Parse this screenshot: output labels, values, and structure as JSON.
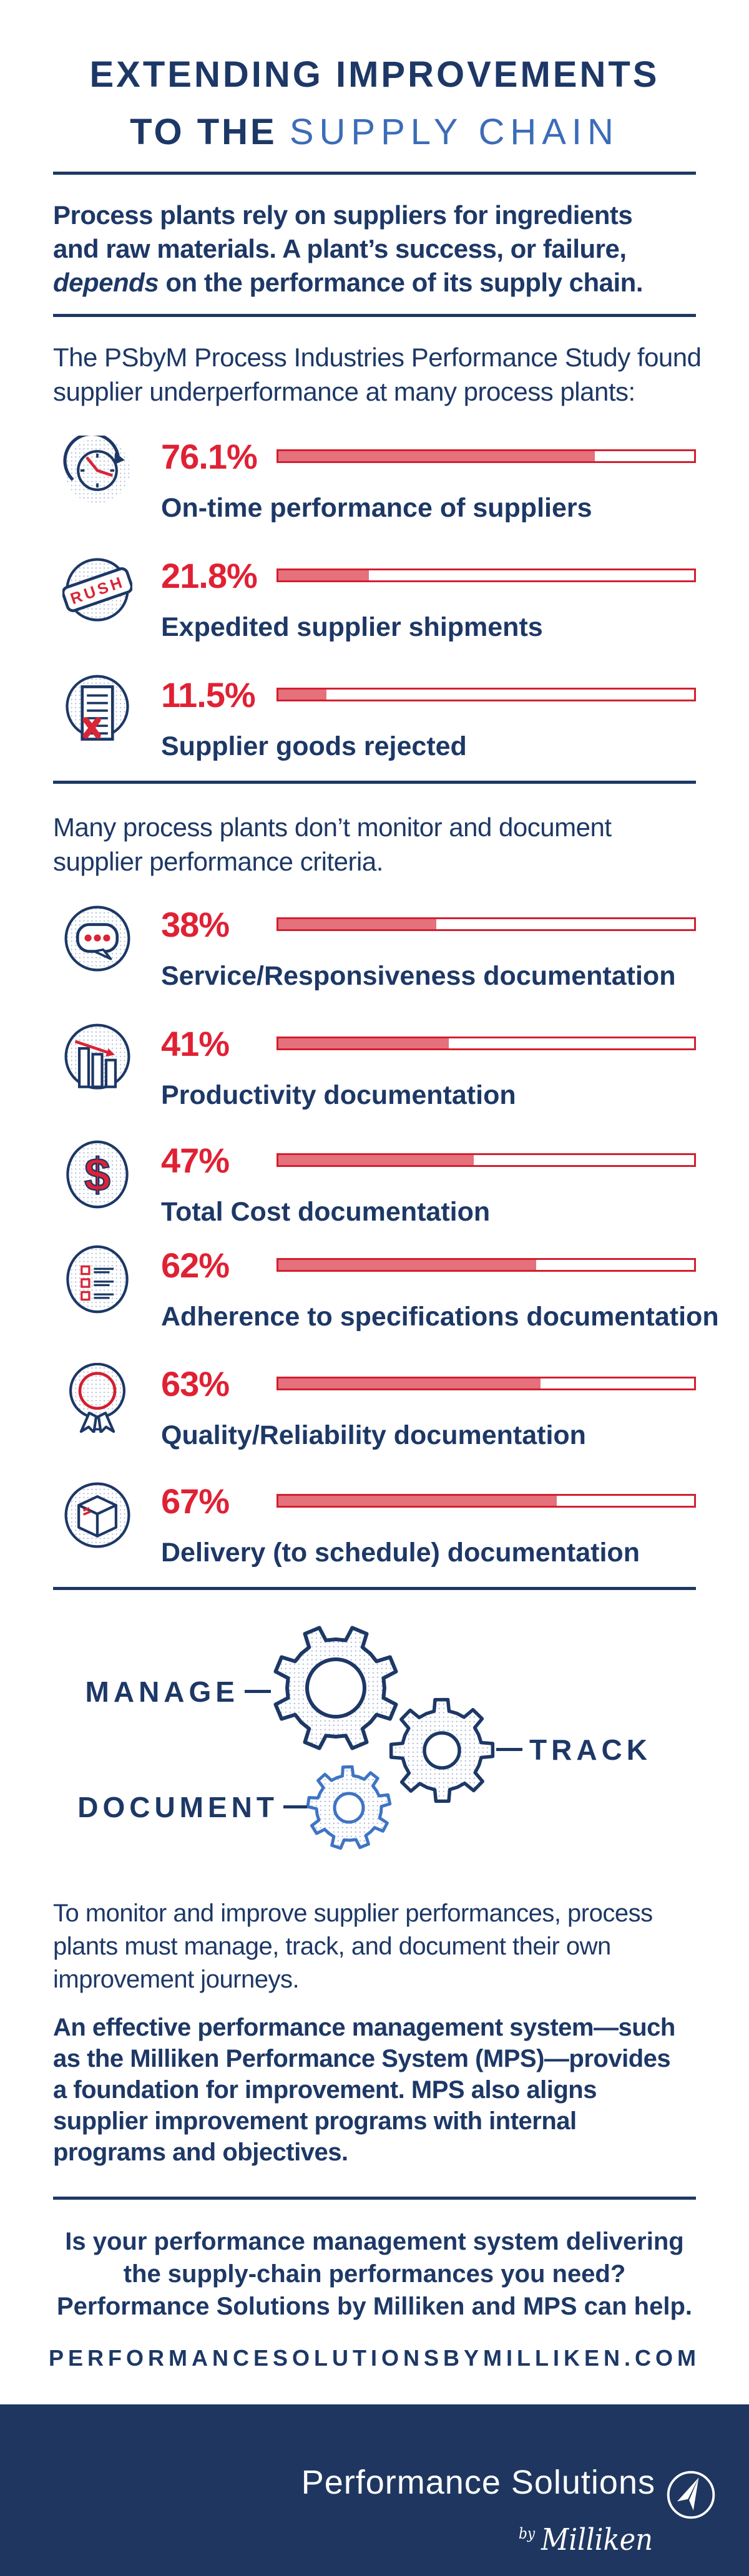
{
  "page_title": "Extending Improvements to the Supply Chain infographic",
  "colors": {
    "navy": "#1d3866",
    "light_blue": "#3c6cb8",
    "red": "#e02134",
    "bar_fill": "#e4717b",
    "bar_border": "#d31f2f",
    "footer_bg": "#1f3760",
    "dot_pattern": "#a9bad8"
  },
  "title": {
    "line1": "EXTENDING IMPROVEMENTS",
    "line2_dark": "TO THE ",
    "line2_light": "SUPPLY CHAIN"
  },
  "intro": {
    "line1": "Process plants rely on suppliers for ingredients",
    "line2": "and raw materials. A plant’s success, or failure,",
    "line3_italic": "depends",
    "line3_rest": " on the performance of its supply chain."
  },
  "study": {
    "line1": "The PSbyM Process Industries Performance Study found",
    "line2": "supplier underperformance at many process plants:"
  },
  "stats_supplier": [
    {
      "value": "76.1%",
      "percent": 76.1,
      "label": "On-time performance of suppliers",
      "icon": "clock-icon"
    },
    {
      "value": "21.8%",
      "percent": 21.8,
      "label": "Expedited supplier shipments",
      "icon": "rush-stamp-icon",
      "stamp_text": "RUSH"
    },
    {
      "value": "11.5%",
      "percent": 11.5,
      "label": "Supplier goods rejected",
      "icon": "rejected-document-icon"
    }
  ],
  "monitor": {
    "line1": "Many process plants don’t monitor and document",
    "line2": "supplier performance criteria."
  },
  "stats_documentation": [
    {
      "value": "38%",
      "percent": 38,
      "label": "Service/Responsiveness documentation",
      "icon": "speech-bubble-icon"
    },
    {
      "value": "41%",
      "percent": 41,
      "label": "Productivity documentation",
      "icon": "bar-chart-icon"
    },
    {
      "value": "47%",
      "percent": 47,
      "label": "Total Cost documentation",
      "icon": "dollar-icon",
      "dollar_text": "$"
    },
    {
      "value": "62%",
      "percent": 62,
      "label": "Adherence to specifications documentation",
      "icon": "checklist-icon"
    },
    {
      "value": "63%",
      "percent": 63,
      "label": "Quality/Reliability documentation",
      "icon": "award-ribbon-icon"
    },
    {
      "value": "67%",
      "percent": 67,
      "label": "Delivery (to schedule) documentation",
      "icon": "package-box-icon"
    }
  ],
  "gears": {
    "manage": "MANAGE",
    "track": "TRACK",
    "document": "DOCUMENT"
  },
  "body1": {
    "line1": "To monitor and improve supplier performances, process",
    "line2": "plants must manage, track, and document their own",
    "line3": "improvement journeys."
  },
  "body2": {
    "line1": "An effective performance management system—such",
    "line2": "as the Milliken Performance System (MPS)—provides",
    "line3": "a foundation for improvement. MPS also aligns",
    "line4": "supplier improvement programs with internal",
    "line5": "programs and objectives."
  },
  "cta": {
    "line1": "Is your performance management system delivering",
    "line2": "the supply-chain performances you need?",
    "line3": "Performance Solutions by Milliken and MPS can help.",
    "url": "PERFORMANCESOLUTIONSBYMILLIKEN.COM"
  },
  "footer": {
    "brand": "Performance Solutions",
    "by_label": "by",
    "company": "Milliken"
  },
  "chart_data": [
    {
      "type": "bar",
      "title": "Supplier underperformance found at process plants",
      "categories": [
        "On-time performance of suppliers",
        "Expedited supplier shipments",
        "Supplier goods rejected"
      ],
      "values": [
        76.1,
        21.8,
        11.5
      ],
      "unit": "%",
      "xlim": [
        0,
        100
      ],
      "orientation": "horizontal",
      "bar_color": "#e4717b",
      "border_color": "#d31f2f"
    },
    {
      "type": "bar",
      "title": "Process plants that don’t monitor and document supplier performance criteria",
      "categories": [
        "Service/Responsiveness documentation",
        "Productivity documentation",
        "Total Cost documentation",
        "Adherence to specifications documentation",
        "Quality/Reliability documentation",
        "Delivery (to schedule) documentation"
      ],
      "values": [
        38,
        41,
        47,
        62,
        63,
        67
      ],
      "unit": "%",
      "xlim": [
        0,
        100
      ],
      "orientation": "horizontal",
      "bar_color": "#e4717b",
      "border_color": "#d31f2f"
    }
  ]
}
